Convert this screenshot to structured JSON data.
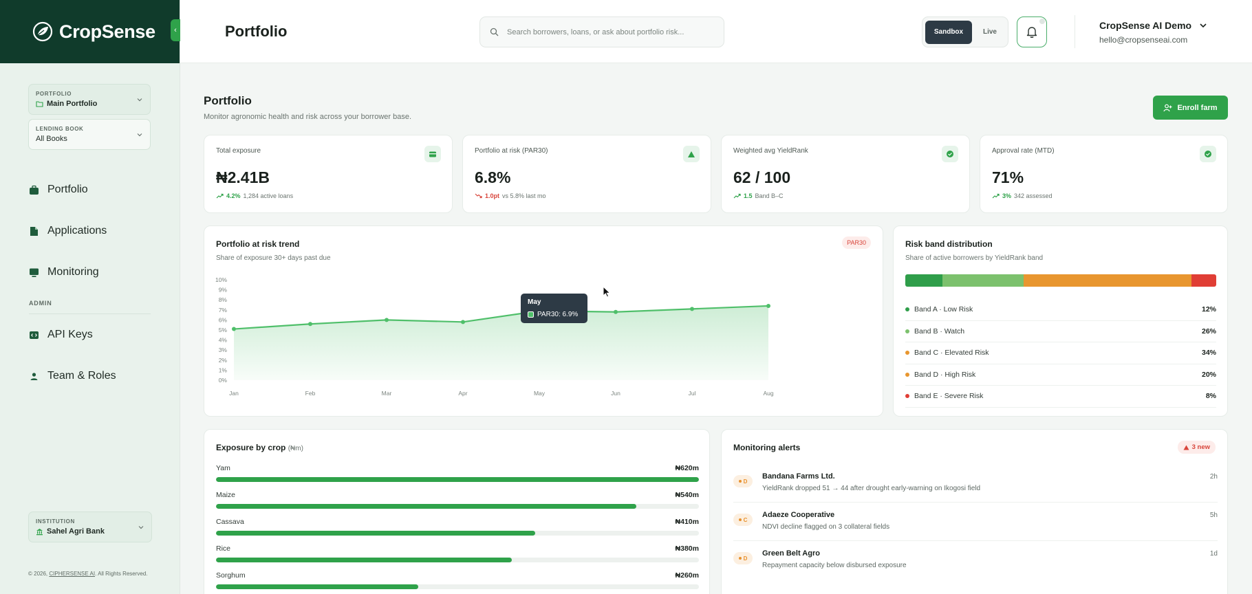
{
  "app": {
    "brand": "CropSense",
    "page_title": "Portfolio"
  },
  "colors": {
    "brand_dark": "#103b2b",
    "accent": "#2fa24a",
    "danger": "#d8453b",
    "warning": "#e8912d"
  },
  "sidebar": {
    "portfolio_selector": {
      "label": "PORTFOLIO",
      "value": "Main Portfolio",
      "icon": "folder-icon"
    },
    "lending_selector": {
      "label": "LENDING BOOK",
      "value": "All Books"
    },
    "nav": [
      {
        "label": "Portfolio",
        "icon": "briefcase-icon"
      },
      {
        "label": "Applications",
        "icon": "document-icon"
      },
      {
        "label": "Monitoring",
        "icon": "monitor-icon"
      }
    ],
    "admin_label": "ADMIN",
    "admin_nav": [
      {
        "label": "API Keys",
        "icon": "code-icon"
      },
      {
        "label": "Team & Roles",
        "icon": "users-icon"
      }
    ],
    "institution_selector": {
      "label": "INSTITUTION",
      "value": "Sahel Agri Bank",
      "icon": "bank-icon"
    },
    "copyright_prefix": "© 2026,",
    "copyright_link": "CIPHERSENSE AI",
    "copyright_suffix": ". All Rights Reserved."
  },
  "topbar": {
    "search_placeholder": "Search borrowers, loans, or ask about portfolio risk...",
    "env": {
      "active": "Sandbox",
      "inactive": "Live"
    },
    "user": {
      "name": "CropSense AI Demo",
      "email": "hello@cropsenseai.com"
    }
  },
  "main": {
    "title": "Portfolio",
    "subtitle": "Monitor agronomic health and risk across your borrower base.",
    "enroll_label": "Enroll farm"
  },
  "kpis": [
    {
      "label": "Total exposure",
      "value": "₦2.41B",
      "delta": "4.2%",
      "delta_dir": "up",
      "note": "1,284 active loans",
      "icon": "wallet-icon"
    },
    {
      "label": "Portfolio at risk (PAR30)",
      "value": "6.8%",
      "delta": "1.0pt",
      "delta_dir": "down",
      "note": "vs 5.8% last mo",
      "icon": "warning-icon"
    },
    {
      "label": "Weighted avg YieldRank",
      "value": "62 / 100",
      "delta": "1.5",
      "delta_dir": "up",
      "note": "Band B–C",
      "icon": "check-circle-icon"
    },
    {
      "label": "Approval rate (MTD)",
      "value": "71%",
      "delta": "3%",
      "delta_dir": "up",
      "note": "342 assessed",
      "icon": "check-circle-icon"
    }
  ],
  "par_trend": {
    "title": "Portfolio at risk trend",
    "subtitle": "Share of exposure 30+ days past due",
    "badge": "PAR30",
    "tooltip": {
      "month": "May",
      "text": "PAR30: 6.9%"
    }
  },
  "chart_data": {
    "type": "area",
    "categories": [
      "Jan",
      "Feb",
      "Mar",
      "Apr",
      "May",
      "Jun",
      "Jul",
      "Aug"
    ],
    "series": [
      {
        "name": "PAR30",
        "values": [
          5.1,
          5.6,
          6.0,
          5.8,
          6.9,
          6.8,
          7.1,
          7.4
        ]
      }
    ],
    "y_ticks": [
      "0%",
      "1%",
      "2%",
      "3%",
      "4%",
      "5%",
      "6%",
      "7%",
      "8%",
      "9%",
      "10%"
    ],
    "ylim": [
      0,
      10
    ],
    "grid": false
  },
  "risk_bands": {
    "title": "Risk band distribution",
    "subtitle": "Share of active borrowers by YieldRank band",
    "bands": [
      {
        "label": "Band A · Low Risk",
        "pct": "12%",
        "value": 12,
        "color": "#2f9e4a"
      },
      {
        "label": "Band B · Watch",
        "pct": "26%",
        "value": 26,
        "color": "#7cc16d"
      },
      {
        "label": "Band C · Elevated Risk",
        "pct": "34%",
        "value": 34,
        "color": "#e8962f"
      },
      {
        "label": "Band D · High Risk",
        "pct": "20%",
        "value": 20,
        "color": "#e8962f"
      },
      {
        "label": "Band E · Severe Risk",
        "pct": "8%",
        "value": 8,
        "color": "#e03e35"
      }
    ]
  },
  "crop_exposure": {
    "title": "Exposure by crop",
    "unit": "(₦m)",
    "max": 620,
    "crops": [
      {
        "name": "Yam",
        "label": "₦620m",
        "value": 620
      },
      {
        "name": "Maize",
        "label": "₦540m",
        "value": 540
      },
      {
        "name": "Cassava",
        "label": "₦410m",
        "value": 410
      },
      {
        "name": "Rice",
        "label": "₦380m",
        "value": 380
      },
      {
        "name": "Sorghum",
        "label": "₦260m",
        "value": 260
      }
    ]
  },
  "alerts": {
    "title": "Monitoring alerts",
    "badge": "3 new",
    "items": [
      {
        "band": "D",
        "name": "Bandana Farms Ltd.",
        "desc": "YieldRank dropped 51 → 44 after drought early-warning on Ikogosi field",
        "time": "2h"
      },
      {
        "band": "C",
        "name": "Adaeze Cooperative",
        "desc": "NDVI decline flagged on 3 collateral fields",
        "time": "5h"
      },
      {
        "band": "D",
        "name": "Green Belt Agro",
        "desc": "Repayment capacity below disbursed exposure",
        "time": "1d"
      }
    ]
  }
}
